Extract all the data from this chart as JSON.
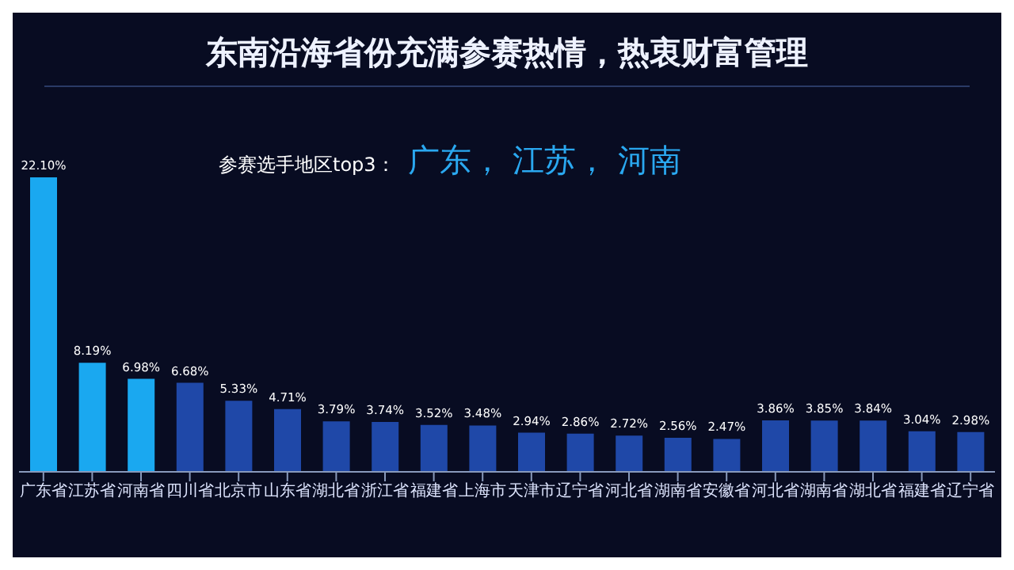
{
  "chart_data": {
    "type": "bar",
    "title": "东南沿海省份充满参赛热情，热衷财富管理",
    "subtitle": "参赛选手地区top3：",
    "annotations": [
      "广东，  江苏，  河南"
    ],
    "categories": [
      "广东省",
      "江苏省",
      "河南省",
      "四川省",
      "北京市",
      "山东省",
      "湖北省",
      "浙江省",
      "福建省",
      "上海市",
      "天津市",
      "辽宁省",
      "河北省",
      "湖南省",
      "安徽省",
      "河北省",
      "湖南省",
      "湖北省",
      "福建省",
      "辽宁省"
    ],
    "values": [
      22.1,
      8.19,
      6.98,
      6.68,
      5.33,
      4.71,
      3.79,
      3.74,
      3.52,
      3.48,
      2.94,
      2.86,
      2.72,
      2.56,
      2.47,
      3.86,
      3.85,
      3.84,
      3.04,
      2.98
    ],
    "value_labels": [
      "22.10%",
      "8.19%",
      "6.98%",
      "6.68%",
      "5.33%",
      "4.71%",
      "3.79%",
      "3.74%",
      "3.52%",
      "3.48%",
      "2.94%",
      "2.86%",
      "2.72%",
      "2.56%",
      "2.47%",
      "3.86%",
      "3.85%",
      "3.84%",
      "3.04%",
      "2.98%"
    ],
    "colors": [
      "#1aa8f0",
      "#1aa8f0",
      "#1aa8f0",
      "#1f48a8",
      "#1f48a8",
      "#1f48a8",
      "#1f48a8",
      "#1f48a8",
      "#1f48a8",
      "#1f48a8",
      "#1f48a8",
      "#1f48a8",
      "#1f48a8",
      "#1f48a8",
      "#1f48a8",
      "#1f48a8",
      "#1f48a8",
      "#1f48a8",
      "#1f48a8",
      "#1f48a8"
    ],
    "grid": false,
    "legend": false
  }
}
